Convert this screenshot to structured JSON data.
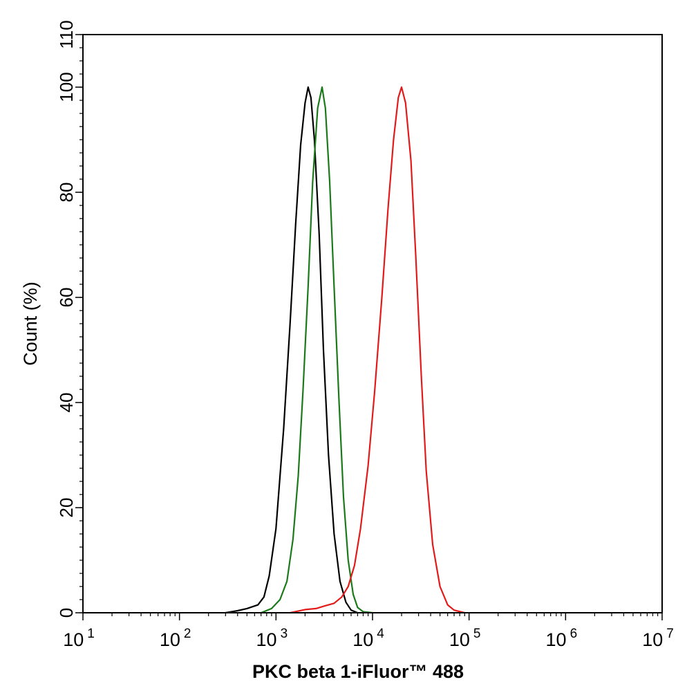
{
  "chart_data": {
    "type": "line",
    "xlabel": "PKC beta 1-iFluor™ 488",
    "ylabel": "Count  (%)",
    "xscale": "log",
    "xlim": [
      10,
      10000000
    ],
    "ylim": [
      0,
      110
    ],
    "yticks": [
      0,
      20,
      40,
      60,
      80,
      100,
      110
    ],
    "xticks": [
      {
        "value": 10,
        "base": "10",
        "exp": "1"
      },
      {
        "value": 100,
        "base": "10",
        "exp": "2"
      },
      {
        "value": 1000,
        "base": "10",
        "exp": "3"
      },
      {
        "value": 10000,
        "base": "10",
        "exp": "4"
      },
      {
        "value": 100000,
        "base": "10",
        "exp": "5"
      },
      {
        "value": 1000000,
        "base": "10",
        "exp": "6"
      },
      {
        "value": 10000000,
        "base": "10",
        "exp": "7"
      }
    ],
    "grid": false,
    "legend": "none",
    "series": [
      {
        "color": "#000000",
        "points": [
          [
            300,
            0
          ],
          [
            400,
            0.4
          ],
          [
            500,
            0.8
          ],
          [
            650,
            1.5
          ],
          [
            750,
            3
          ],
          [
            850,
            7
          ],
          [
            1000,
            16
          ],
          [
            1200,
            35
          ],
          [
            1400,
            55
          ],
          [
            1600,
            74
          ],
          [
            1800,
            89
          ],
          [
            2000,
            97
          ],
          [
            2150,
            100
          ],
          [
            2300,
            98
          ],
          [
            2500,
            90
          ],
          [
            2800,
            72
          ],
          [
            3100,
            50
          ],
          [
            3500,
            30
          ],
          [
            4000,
            15
          ],
          [
            4600,
            6
          ],
          [
            5300,
            2
          ],
          [
            6000,
            0.5
          ],
          [
            7000,
            0
          ]
        ]
      },
      {
        "color": "#1a7a1a",
        "points": [
          [
            700,
            0
          ],
          [
            900,
            0.8
          ],
          [
            1100,
            2.5
          ],
          [
            1300,
            6
          ],
          [
            1500,
            14
          ],
          [
            1700,
            26
          ],
          [
            1900,
            42
          ],
          [
            2150,
            62
          ],
          [
            2400,
            82
          ],
          [
            2700,
            96
          ],
          [
            3000,
            100
          ],
          [
            3250,
            96
          ],
          [
            3600,
            82
          ],
          [
            4000,
            62
          ],
          [
            4500,
            40
          ],
          [
            5000,
            22
          ],
          [
            5600,
            10
          ],
          [
            6300,
            3.5
          ],
          [
            7000,
            1
          ],
          [
            8000,
            0.2
          ],
          [
            10000,
            0
          ]
        ]
      },
      {
        "color": "#e31a1a",
        "points": [
          [
            1400,
            0
          ],
          [
            2000,
            0.6
          ],
          [
            2600,
            0.8
          ],
          [
            3200,
            1.3
          ],
          [
            4000,
            1.8
          ],
          [
            4800,
            3
          ],
          [
            5600,
            5
          ],
          [
            6500,
            9
          ],
          [
            7500,
            16
          ],
          [
            9000,
            28
          ],
          [
            10500,
            42
          ],
          [
            12500,
            60
          ],
          [
            14500,
            77
          ],
          [
            16500,
            90
          ],
          [
            18500,
            98
          ],
          [
            20000,
            100
          ],
          [
            22000,
            97
          ],
          [
            25000,
            86
          ],
          [
            28000,
            68
          ],
          [
            32000,
            45
          ],
          [
            36000,
            27
          ],
          [
            42000,
            13
          ],
          [
            50000,
            5
          ],
          [
            60000,
            1.5
          ],
          [
            70000,
            0.5
          ],
          [
            90000,
            0
          ]
        ]
      }
    ]
  }
}
